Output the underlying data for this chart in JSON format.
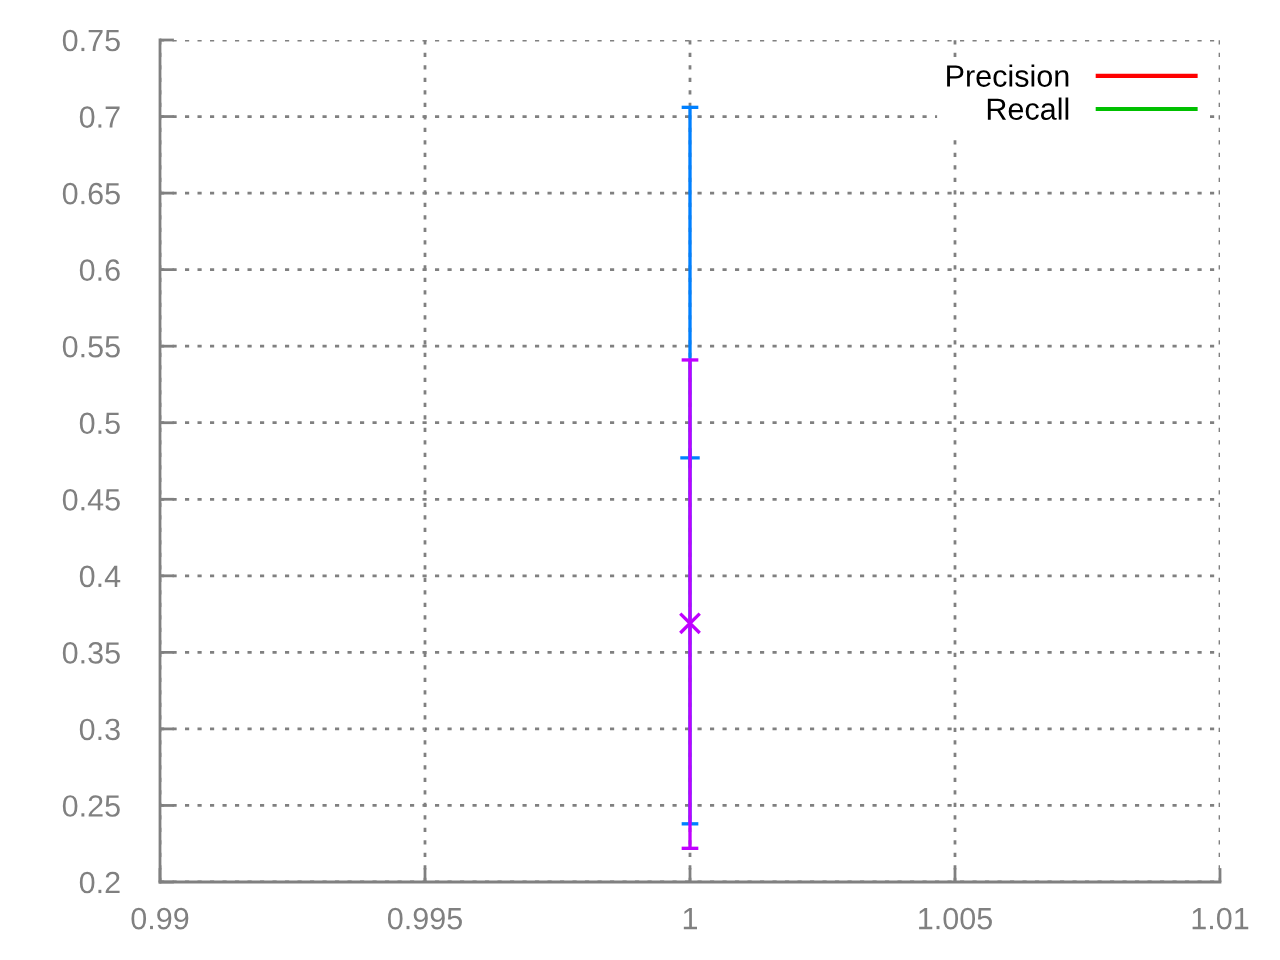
{
  "chart_data": {
    "type": "scatter",
    "x": [
      1
    ],
    "xlim": [
      0.99,
      1.01
    ],
    "xticks": [
      0.99,
      0.995,
      1,
      1.005,
      1.01
    ],
    "ylim": [
      0.2,
      0.75
    ],
    "yticks": [
      0.2,
      0.25,
      0.3,
      0.35,
      0.4,
      0.45,
      0.5,
      0.55,
      0.6,
      0.65,
      0.7,
      0.75
    ],
    "grid": true,
    "legend": "top right",
    "series": [
      {
        "name": "Precision",
        "type": "line",
        "color": "#ff0000",
        "values": [
          null
        ]
      },
      {
        "name": "Recall",
        "type": "line",
        "color": "#00c000",
        "values": [
          null
        ]
      },
      {
        "color": "#0080ff",
        "marker": "plus",
        "values": [
          0.477
        ],
        "errors": [
          [
            0.238,
            0.706
          ]
        ]
      },
      {
        "color": "#c000ff",
        "marker": "cross",
        "values": [
          0.369
        ],
        "errors": [
          [
            0.222,
            0.541
          ]
        ]
      }
    ]
  }
}
